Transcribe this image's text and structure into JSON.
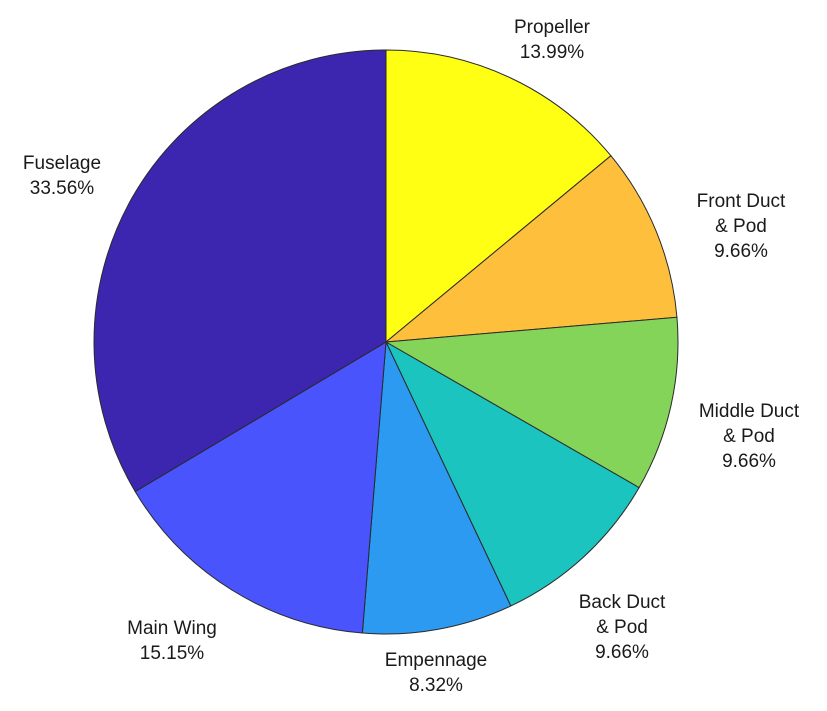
{
  "chart_data": {
    "type": "pie",
    "title": "",
    "start": "top",
    "direction": "clockwise",
    "slices": [
      {
        "name_lines": [
          "Propeller"
        ],
        "value": 13.99,
        "value_label": "13.99%",
        "color": "#FFFF14"
      },
      {
        "name_lines": [
          "Front Duct",
          "& Pod"
        ],
        "value": 9.66,
        "value_label": "9.66%",
        "color": "#FDBF3C"
      },
      {
        "name_lines": [
          "Middle Duct",
          "& Pod"
        ],
        "value": 9.66,
        "value_label": "9.66%",
        "color": "#84D459"
      },
      {
        "name_lines": [
          "Back Duct",
          "& Pod"
        ],
        "value": 9.66,
        "value_label": "9.66%",
        "color": "#1BC4BE"
      },
      {
        "name_lines": [
          "Empennage"
        ],
        "value": 8.32,
        "value_label": "8.32%",
        "color": "#2B9AF0"
      },
      {
        "name_lines": [
          "Main Wing"
        ],
        "value": 15.15,
        "value_label": "15.15%",
        "color": "#4A54FC"
      },
      {
        "name_lines": [
          "Fuselage"
        ],
        "value": 33.56,
        "value_label": "33.56%",
        "color": "#3D26AF"
      }
    ]
  }
}
